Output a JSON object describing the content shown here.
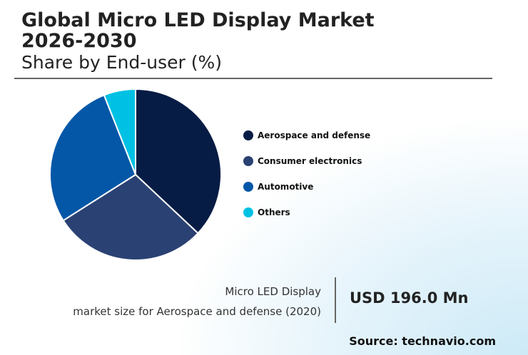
{
  "header": {
    "title_line1": "Global Micro LED Display Market",
    "title_line2": "2026-2030",
    "subtitle": "Share by End-user (%)"
  },
  "chart_data": {
    "type": "pie",
    "title": "Global Micro LED Display Market 2026-2030",
    "subtitle": "Share by End-user (%)",
    "categories": [
      "Aerospace and defense",
      "Consumer electronics",
      "Automotive",
      "Others"
    ],
    "values": [
      37,
      29,
      28,
      6
    ],
    "colors": [
      "#071c45",
      "#2a4173",
      "#0457a7",
      "#00c1e4"
    ],
    "start_angle": "top, clockwise",
    "legend_position": "right"
  },
  "stat": {
    "label_line1": "Micro LED Display",
    "label_line2": "market size for Aerospace and defense (2020)",
    "value": "USD 196.0 Mn"
  },
  "source": "Source: technavio.com"
}
